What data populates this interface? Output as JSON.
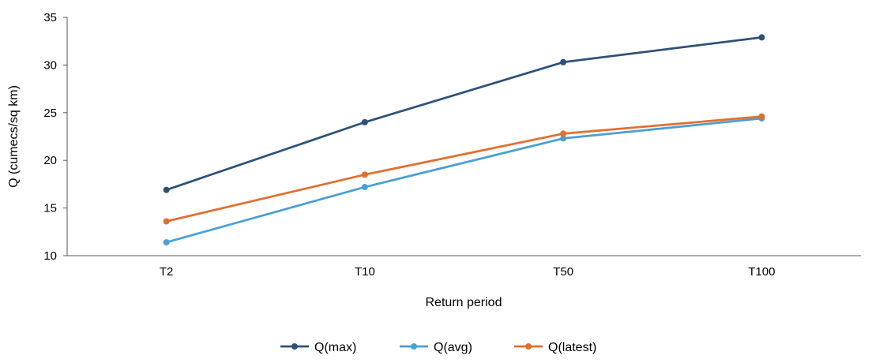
{
  "chart_data": {
    "type": "line",
    "title": "",
    "xlabel": "Return period",
    "ylabel": "Q (cumecs/sq km)",
    "categories": [
      "T2",
      "T10",
      "T50",
      "T100"
    ],
    "ylim": [
      10,
      35
    ],
    "yticks": [
      10,
      15,
      20,
      25,
      30,
      35
    ],
    "grid": false,
    "legend_position": "bottom",
    "series": [
      {
        "name": "Q(max)",
        "color": "#2e5178",
        "values": [
          16.9,
          24.0,
          30.3,
          32.9
        ]
      },
      {
        "name": "Q(avg)",
        "color": "#4a9fd4",
        "values": [
          11.4,
          17.2,
          22.3,
          24.4
        ]
      },
      {
        "name": "Q(latest)",
        "color": "#e07030",
        "values": [
          13.6,
          18.5,
          22.8,
          24.6
        ]
      }
    ]
  }
}
